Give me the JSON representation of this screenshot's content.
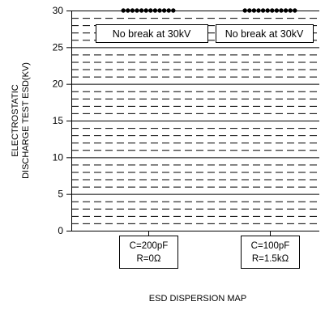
{
  "chart_data": {
    "type": "scatter",
    "title": "",
    "xlabel": "ESD DISPERSION MAP",
    "ylabel_lines": [
      "ELECTROSTATIC",
      "DISCHARGE TEST ESD(KV)"
    ],
    "ylim": [
      0,
      30
    ],
    "yticks": [
      0,
      5,
      10,
      15,
      20,
      25,
      30
    ],
    "grid": "solid major gridlines every 5 kV, dashed minor gridlines every 1 kV",
    "legend": "none",
    "categories": [
      {
        "lines": [
          "C=200pF",
          "R=0Ω"
        ]
      },
      {
        "lines": [
          "C=100pF",
          "R=1.5kΩ"
        ]
      }
    ],
    "series": [
      {
        "category_index": 0,
        "count": 12,
        "y": 30,
        "annotation": "No break at 30kV"
      },
      {
        "category_index": 1,
        "count": 12,
        "y": 30,
        "annotation": "No break at 30kV"
      }
    ],
    "colors": {
      "points": "#000000",
      "grid": "#000000",
      "background": "#ffffff"
    }
  }
}
